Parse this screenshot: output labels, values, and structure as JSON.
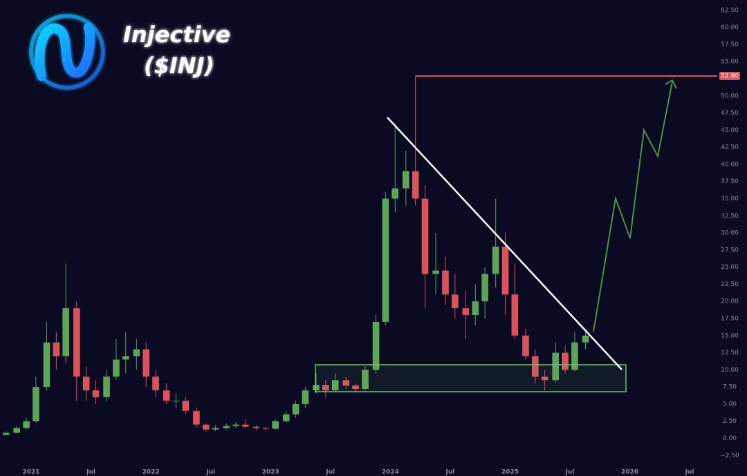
{
  "chart_data": {
    "type": "candlestick",
    "title": "Injective",
    "subtitle": "($INJ)",
    "up_color": "#5ea35a",
    "down_color": "#d9535a",
    "x": [
      2020.79,
      2020.88,
      2020.96,
      2021.04,
      2021.13,
      2021.21,
      2021.29,
      2021.38,
      2021.46,
      2021.54,
      2021.63,
      2021.71,
      2021.79,
      2021.88,
      2021.96,
      2022.04,
      2022.13,
      2022.21,
      2022.29,
      2022.38,
      2022.46,
      2022.54,
      2022.63,
      2022.71,
      2022.79,
      2022.88,
      2022.96,
      2023.04,
      2023.13,
      2023.21,
      2023.29,
      2023.38,
      2023.46,
      2023.54,
      2023.63,
      2023.71,
      2023.79,
      2023.88,
      2023.96,
      2024.04,
      2024.13,
      2024.21,
      2024.29,
      2024.38,
      2024.46,
      2024.54,
      2024.63,
      2024.71,
      2024.79,
      2024.88,
      2024.96,
      2025.04,
      2025.13,
      2025.21,
      2025.29,
      2025.38,
      2025.46,
      2025.54,
      2025.63
    ],
    "open": [
      0.5,
      0.8,
      1.5,
      2.5,
      7.5,
      14.0,
      12.0,
      19.0,
      9.0,
      7.0,
      6.0,
      9.0,
      11.5,
      12.0,
      13.0,
      9.0,
      7.0,
      5.5,
      5.5,
      4.0,
      2.0,
      1.3,
      1.5,
      1.8,
      2.0,
      1.7,
      1.5,
      1.4,
      2.5,
      3.5,
      5.0,
      7.0,
      7.8,
      7.0,
      8.5,
      7.7,
      7.2,
      10.0,
      17.0,
      35.0,
      36.5,
      39.0,
      35.0,
      24.0,
      24.5,
      21.0,
      19.0,
      18.0,
      20.0,
      24.0,
      28.0,
      21.0,
      15.0,
      12.0,
      9.0,
      8.5,
      12.5,
      10.0,
      14.0
    ],
    "high": [
      1.0,
      1.8,
      3.0,
      9.0,
      17.0,
      15.5,
      25.5,
      20.0,
      10.5,
      8.5,
      10.0,
      14.5,
      15.5,
      14.5,
      14.0,
      10.0,
      8.0,
      6.5,
      6.0,
      4.5,
      2.2,
      1.9,
      2.2,
      2.4,
      2.8,
      1.9,
      1.7,
      2.8,
      4.0,
      5.5,
      7.5,
      9.5,
      8.5,
      9.5,
      9.0,
      8.0,
      10.5,
      18.0,
      36.0,
      46.0,
      42.0,
      52.9,
      37.0,
      30.0,
      26.5,
      24.0,
      21.5,
      22.5,
      25.0,
      35.0,
      30.0,
      25.5,
      16.0,
      13.0,
      10.0,
      14.0,
      13.5,
      15.5,
      16.0
    ],
    "low": [
      0.4,
      0.7,
      1.3,
      2.3,
      7.0,
      10.0,
      11.0,
      5.5,
      5.5,
      5.0,
      5.5,
      8.5,
      9.5,
      10.0,
      7.5,
      6.0,
      5.0,
      4.5,
      3.5,
      1.5,
      1.0,
      1.1,
      1.3,
      1.5,
      1.5,
      1.2,
      1.1,
      1.3,
      2.3,
      3.0,
      4.5,
      6.5,
      6.0,
      6.8,
      7.2,
      6.8,
      7.0,
      9.5,
      16.5,
      33.0,
      34.0,
      34.0,
      19.0,
      21.0,
      19.5,
      17.5,
      14.5,
      16.5,
      17.5,
      22.0,
      18.0,
      14.5,
      11.5,
      8.0,
      7.0,
      8.2,
      9.5,
      9.8,
      13.0
    ],
    "close": [
      0.8,
      1.5,
      2.5,
      7.5,
      14.0,
      12.0,
      19.0,
      9.0,
      7.0,
      6.0,
      9.0,
      11.5,
      12.0,
      13.0,
      9.0,
      7.0,
      5.5,
      5.5,
      4.0,
      2.0,
      1.3,
      1.5,
      1.8,
      2.0,
      1.7,
      1.5,
      1.4,
      2.5,
      3.5,
      5.0,
      7.0,
      7.8,
      7.0,
      8.5,
      7.7,
      7.2,
      10.0,
      17.0,
      35.0,
      36.5,
      39.0,
      35.0,
      24.0,
      24.5,
      21.0,
      19.0,
      18.0,
      20.0,
      24.0,
      28.0,
      21.0,
      15.0,
      12.0,
      9.0,
      8.5,
      12.5,
      10.0,
      14.0,
      15.0
    ],
    "resistance": {
      "value": 52.9,
      "label": "52.90"
    },
    "xlim": [
      2020.74,
      2026.69
    ],
    "xticks": [
      {
        "value": 2021,
        "label": "2021"
      },
      {
        "value": 2021.5,
        "label": "Jul"
      },
      {
        "value": 2022,
        "label": "2022"
      },
      {
        "value": 2022.5,
        "label": "Jul"
      },
      {
        "value": 2023,
        "label": "2023"
      },
      {
        "value": 2023.5,
        "label": "Jul"
      },
      {
        "value": 2024,
        "label": "2024"
      },
      {
        "value": 2024.5,
        "label": "Jul"
      },
      {
        "value": 2025,
        "label": "2025"
      },
      {
        "value": 2025.5,
        "label": "Jul"
      },
      {
        "value": 2026,
        "label": "2026"
      },
      {
        "value": 2026.5,
        "label": "Jul"
      }
    ],
    "ylim": [
      -5.5,
      64
    ],
    "yticks": [
      {
        "value": -2.5,
        "label": "−2.50"
      },
      {
        "value": 0,
        "label": "0.00"
      },
      {
        "value": 2.5,
        "label": "2.50"
      },
      {
        "value": 5,
        "label": "5.00"
      },
      {
        "value": 7.5,
        "label": "7.50"
      },
      {
        "value": 10,
        "label": "10.00"
      },
      {
        "value": 12.5,
        "label": "12.50"
      },
      {
        "value": 15,
        "label": "15.00"
      },
      {
        "value": 17.5,
        "label": "17.50"
      },
      {
        "value": 20,
        "label": "20.00"
      },
      {
        "value": 22.5,
        "label": "22.50"
      },
      {
        "value": 25,
        "label": "25.00"
      },
      {
        "value": 27.5,
        "label": "27.50"
      },
      {
        "value": 30,
        "label": "30.00"
      },
      {
        "value": 32.5,
        "label": "32.50"
      },
      {
        "value": 35,
        "label": "35.00"
      },
      {
        "value": 37.5,
        "label": "37.50"
      },
      {
        "value": 40,
        "label": "40.00"
      },
      {
        "value": 42.5,
        "label": "42.50"
      },
      {
        "value": 45,
        "label": "45.00"
      },
      {
        "value": 47.5,
        "label": "47.50"
      },
      {
        "value": 50,
        "label": "50.00"
      },
      {
        "value": 55,
        "label": "55.00"
      },
      {
        "value": 57.5,
        "label": "57.50"
      },
      {
        "value": 60,
        "label": "60.00"
      },
      {
        "value": 62.5,
        "label": "62.50"
      }
    ]
  }
}
